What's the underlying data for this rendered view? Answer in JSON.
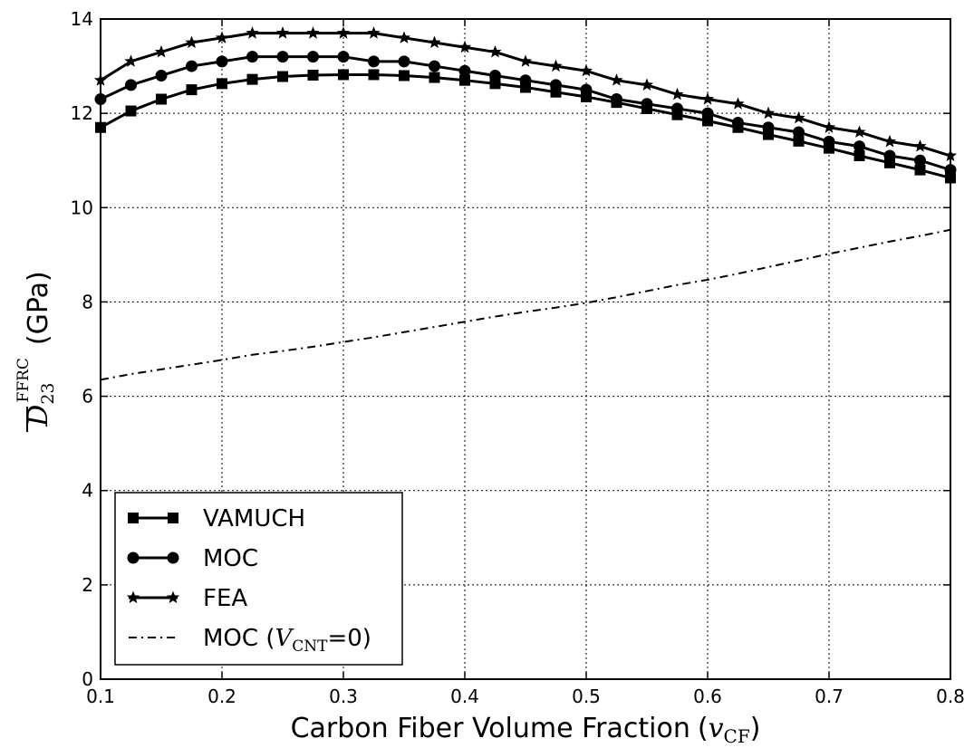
{
  "chart_data": {
    "type": "line",
    "xlabel": "Carbon Fiber Volume Fraction",
    "xlabel_symbol": "v",
    "xlabel_symbol_sub": "CF",
    "ylabel_symbol": "D",
    "ylabel_symbol_sub": "23",
    "ylabel_symbol_sup": "FFRC",
    "ylabel_unit": "(GPa)",
    "xlim": [
      0.1,
      0.8
    ],
    "ylim": [
      0,
      14
    ],
    "xticks": [
      "0.1",
      "0.2",
      "0.3",
      "0.4",
      "0.5",
      "0.6",
      "0.7",
      "0.8"
    ],
    "yticks": [
      "0",
      "2",
      "4",
      "6",
      "8",
      "10",
      "12",
      "14"
    ],
    "grid": true,
    "legend_position": "lower-left",
    "x": [
      0.1,
      0.125,
      0.15,
      0.175,
      0.2,
      0.225,
      0.25,
      0.275,
      0.3,
      0.325,
      0.35,
      0.375,
      0.4,
      0.425,
      0.45,
      0.475,
      0.5,
      0.525,
      0.55,
      0.575,
      0.6,
      0.625,
      0.65,
      0.675,
      0.7,
      0.725,
      0.75,
      0.775,
      0.8
    ],
    "series": [
      {
        "name": "VAMUCH",
        "marker": "square",
        "style": "solid",
        "values": [
          11.7,
          12.05,
          12.3,
          12.5,
          12.63,
          12.72,
          12.78,
          12.81,
          12.82,
          12.82,
          12.8,
          12.76,
          12.7,
          12.63,
          12.55,
          12.45,
          12.35,
          12.23,
          12.1,
          11.97,
          11.84,
          11.7,
          11.55,
          11.41,
          11.26,
          11.1,
          10.95,
          10.8,
          10.63
        ]
      },
      {
        "name": "MOC",
        "marker": "circle",
        "style": "solid",
        "values": [
          12.3,
          12.6,
          12.8,
          13.0,
          13.1,
          13.2,
          13.2,
          13.2,
          13.2,
          13.1,
          13.1,
          13.0,
          12.9,
          12.8,
          12.7,
          12.6,
          12.5,
          12.3,
          12.2,
          12.1,
          12.0,
          11.8,
          11.7,
          11.6,
          11.4,
          11.3,
          11.1,
          11.0,
          10.8
        ]
      },
      {
        "name": "FEA",
        "marker": "star",
        "style": "solid",
        "values": [
          12.7,
          13.1,
          13.3,
          13.5,
          13.6,
          13.7,
          13.7,
          13.7,
          13.7,
          13.7,
          13.6,
          13.5,
          13.4,
          13.3,
          13.1,
          13.0,
          12.9,
          12.7,
          12.6,
          12.4,
          12.3,
          12.2,
          12.0,
          11.9,
          11.7,
          11.6,
          11.4,
          11.3,
          11.1
        ]
      },
      {
        "name": "MOC (",
        "name_symbol": "V",
        "name_symbol_sub": "CNT",
        "name_suffix": "=0)",
        "marker": "none",
        "style": "dashdot",
        "values": [
          6.35,
          6.47,
          6.57,
          6.67,
          6.77,
          6.88,
          6.96,
          7.05,
          7.15,
          7.25,
          7.36,
          7.47,
          7.58,
          7.69,
          7.79,
          7.88,
          7.98,
          8.1,
          8.23,
          8.36,
          8.47,
          8.6,
          8.74,
          8.88,
          9.02,
          9.15,
          9.28,
          9.4,
          9.53
        ]
      }
    ]
  }
}
